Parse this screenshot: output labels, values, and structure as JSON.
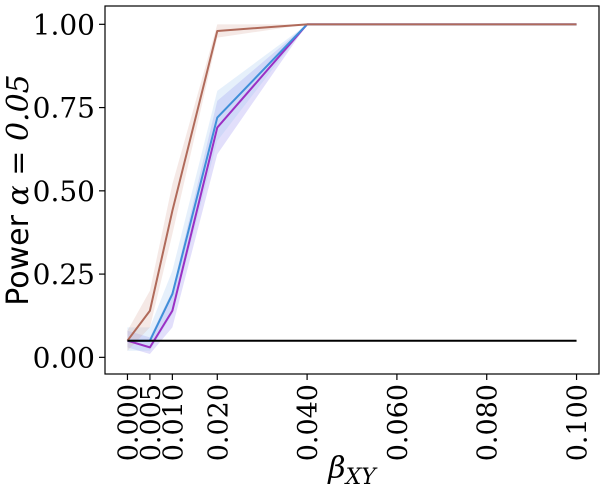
{
  "chart_data": {
    "type": "line",
    "title": "",
    "xlabel": "β_XY",
    "ylabel_prefix": "Power ",
    "ylabel_math": "α = 0.05",
    "x": [
      0.0,
      0.005,
      0.01,
      0.02,
      0.04,
      0.06,
      0.08,
      0.1
    ],
    "x_tick_values": [
      0.0,
      0.005,
      0.01,
      0.02,
      0.04,
      0.06,
      0.08,
      0.1
    ],
    "x_tick_labels": [
      "0.000",
      "0.005",
      "0.010",
      "0.020",
      "0.040",
      "0.060",
      "0.080",
      "0.100"
    ],
    "y_tick_values": [
      0.0,
      0.25,
      0.5,
      0.75,
      1.0
    ],
    "y_tick_labels": [
      "0.00",
      "0.25",
      "0.50",
      "0.75",
      "1.00"
    ],
    "xlim": [
      -0.005,
      0.105
    ],
    "ylim": [
      -0.05,
      1.055
    ],
    "grid": false,
    "legend": "none",
    "series": [
      {
        "color": "#9b30c4",
        "x": [
          0.0,
          0.005,
          0.01,
          0.02,
          0.04,
          0.06,
          0.08,
          0.1
        ],
        "values": [
          0.05,
          0.03,
          0.14,
          0.69,
          1.0,
          1.0,
          1.0,
          1.0
        ],
        "lower": [
          0.03,
          0.01,
          0.09,
          0.61,
          1.0,
          1.0,
          1.0,
          1.0
        ],
        "upper": [
          0.08,
          0.06,
          0.2,
          0.77,
          1.0,
          1.0,
          1.0,
          1.0
        ],
        "band_color": "#8a7ff0"
      },
      {
        "color": "#3f8fd8",
        "x": [
          0.0,
          0.005,
          0.01,
          0.02,
          0.04,
          0.06,
          0.08,
          0.1
        ],
        "values": [
          0.05,
          0.05,
          0.19,
          0.72,
          1.0,
          1.0,
          1.0,
          1.0
        ],
        "lower": [
          0.02,
          0.02,
          0.13,
          0.65,
          1.0,
          1.0,
          1.0,
          1.0
        ],
        "upper": [
          0.09,
          0.09,
          0.26,
          0.8,
          1.0,
          1.0,
          1.0,
          1.0
        ],
        "band_color": "#9cc4ee"
      },
      {
        "color": "#b06a5a",
        "x": [
          0.0,
          0.005,
          0.01,
          0.02,
          0.04,
          0.06,
          0.08,
          0.1
        ],
        "values": [
          0.05,
          0.14,
          0.44,
          0.98,
          1.0,
          1.0,
          1.0,
          1.0
        ],
        "lower": [
          0.02,
          0.09,
          0.37,
          0.96,
          1.0,
          1.0,
          1.0,
          1.0
        ],
        "upper": [
          0.08,
          0.2,
          0.52,
          1.0,
          1.0,
          1.0,
          1.0,
          1.0
        ],
        "band_color": "#d9a79c"
      },
      {
        "color": "#000000",
        "x": [
          0.0,
          0.1
        ],
        "values": [
          0.05,
          0.05
        ]
      }
    ]
  }
}
